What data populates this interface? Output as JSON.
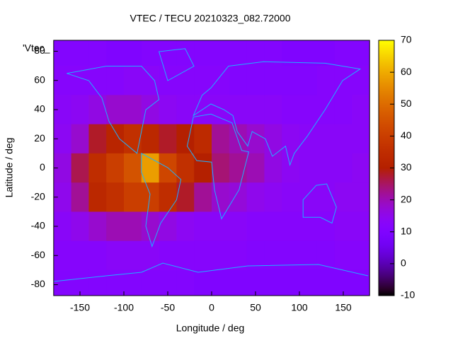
{
  "chart_data": {
    "type": "heatmap",
    "title": "VTEC / TECU 20210323_082.72000",
    "xlabel": "Longitude / deg",
    "ylabel": "Latitude / deg",
    "key_label": "'Vtec_",
    "x": [
      -170,
      -150,
      -130,
      -110,
      -90,
      -70,
      -50,
      -30,
      -10,
      10,
      30,
      50,
      70,
      90,
      110,
      130,
      150,
      170
    ],
    "y": [
      80,
      60,
      40,
      20,
      0,
      -20,
      -40,
      -60,
      -80
    ],
    "values": [
      [
        11,
        11,
        11,
        10,
        10,
        11,
        11,
        11,
        11,
        11,
        11,
        11,
        11,
        10,
        10,
        10,
        11,
        11
      ],
      [
        12,
        12,
        12,
        12,
        13,
        13,
        12,
        12,
        12,
        12,
        11,
        11,
        11,
        11,
        11,
        12,
        12,
        12
      ],
      [
        13,
        14,
        16,
        18,
        18,
        16,
        14,
        13,
        13,
        13,
        13,
        13,
        13,
        12,
        12,
        12,
        12,
        13
      ],
      [
        14,
        18,
        28,
        32,
        36,
        33,
        28,
        30,
        34,
        22,
        20,
        18,
        16,
        14,
        13,
        13,
        13,
        13
      ],
      [
        16,
        26,
        35,
        40,
        45,
        58,
        42,
        36,
        30,
        24,
        22,
        20,
        16,
        14,
        13,
        13,
        13,
        14
      ],
      [
        15,
        22,
        33,
        36,
        40,
        40,
        35,
        28,
        22,
        18,
        17,
        15,
        14,
        13,
        13,
        13,
        14,
        14
      ],
      [
        13,
        15,
        18,
        20,
        20,
        18,
        16,
        14,
        13,
        13,
        13,
        12,
        12,
        12,
        12,
        12,
        13,
        13
      ],
      [
        12,
        12,
        12,
        13,
        13,
        13,
        12,
        12,
        12,
        12,
        12,
        11,
        11,
        11,
        11,
        11,
        12,
        12
      ],
      [
        11,
        11,
        11,
        11,
        11,
        11,
        11,
        11,
        10,
        10,
        10,
        10,
        10,
        10,
        10,
        10,
        10,
        10
      ]
    ],
    "xlim": [
      -180,
      180
    ],
    "ylim": [
      -87.5,
      87.5
    ],
    "xticks": [
      -150,
      -100,
      -50,
      0,
      50,
      100,
      150
    ],
    "yticks": [
      -80,
      -60,
      -40,
      -20,
      0,
      20,
      40,
      60,
      80
    ],
    "cblim": [
      -10,
      70
    ],
    "cbticks": [
      -10,
      0,
      10,
      20,
      30,
      40,
      50,
      60,
      70
    ]
  }
}
